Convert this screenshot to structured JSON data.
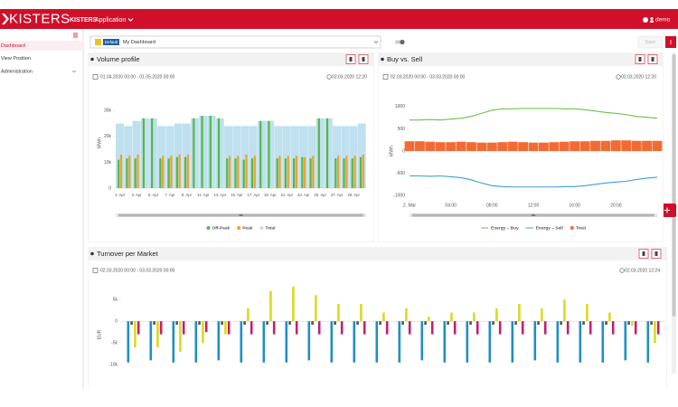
{
  "header": {
    "logo": "KISTERS",
    "app_brand": "KISTERS",
    "app_name": "Application",
    "user": "demo"
  },
  "sidebar": {
    "items": [
      "Dashboard",
      "View Position",
      "Administration"
    ]
  },
  "toolbar": {
    "badge": "Default",
    "dashboard": "My Dashboard",
    "save": "Save"
  },
  "chart_data": [
    {
      "type": "bar",
      "title": "Volume profile",
      "date_range": "01.04.2020 00:00 - 01.05.2020 00:00",
      "timestamp": "02.03.2020 12:20",
      "y_label": "MWh",
      "categories": [
        "1. Apr",
        null,
        "3. Apr",
        null,
        "5. Apr",
        null,
        "7. Apr",
        null,
        "9. Apr",
        null,
        "11. Apr",
        null,
        "13. Apr",
        null,
        "15. Apr",
        null,
        "17. Apr",
        null,
        "19. Apr",
        null,
        "21. Apr",
        null,
        "23. Apr",
        null,
        "25. Apr",
        null,
        "27. Apr",
        null,
        "29. Apr",
        null
      ],
      "ylim": [
        0,
        35000
      ],
      "yticks": [
        0,
        {
          "value": 10000,
          "label": "10k"
        },
        {
          "value": 20000,
          "label": "20k"
        },
        {
          "value": 30000,
          "label": "30k"
        }
      ],
      "series": [
        {
          "name": "Off-Peak",
          "color": "#55b848",
          "kind": "column",
          "values": [
            11000,
            11500,
            11500,
            27000,
            27000,
            11500,
            11500,
            12000,
            12000,
            27000,
            28000,
            28000,
            27000,
            11500,
            11500,
            11000,
            11500,
            26000,
            26000,
            11500,
            11500,
            11500,
            12000,
            11500,
            27000,
            27000,
            11500,
            11500,
            11500,
            12000
          ]
        },
        {
          "name": "Peak",
          "color": "#f0a030",
          "kind": "column",
          "values": [
            13000,
            12500,
            13000,
            0,
            0,
            12500,
            12500,
            13000,
            13000,
            0,
            0,
            0,
            0,
            12500,
            12500,
            13000,
            12500,
            0,
            0,
            12500,
            12500,
            12500,
            12000,
            12500,
            0,
            0,
            12500,
            12500,
            12500,
            13000
          ]
        },
        {
          "name": "Total",
          "color": "#bfe0ee",
          "kind": "backdrop",
          "values": [
            25000,
            24000,
            26000,
            27000,
            27000,
            24000,
            24000,
            25000,
            25000,
            27000,
            28000,
            28000,
            27000,
            24000,
            24000,
            24000,
            24000,
            26000,
            26000,
            24000,
            24000,
            24000,
            24000,
            24000,
            27000,
            27000,
            24000,
            24000,
            24000,
            25000
          ]
        }
      ]
    },
    {
      "type": "line",
      "title": "Buy vs. Sell",
      "date_range": "02.03.2020 00:00 - 03.03.2020 00:00",
      "timestamp": "02.03.2020 12:20",
      "y_label": "MWh",
      "x": [
        0,
        1,
        2,
        3,
        4,
        5,
        6,
        7,
        8,
        9,
        10,
        11,
        12,
        13,
        14,
        15,
        16,
        17,
        18,
        19,
        20,
        21,
        22,
        23,
        24
      ],
      "xlim": [
        0,
        24
      ],
      "xticks": [
        {
          "value": 0,
          "label": "2. Mar"
        },
        {
          "value": 4,
          "label": "04:00"
        },
        {
          "value": 8,
          "label": "08:00"
        },
        {
          "value": 12,
          "label": "12:00"
        },
        {
          "value": 16,
          "label": "16:00"
        },
        {
          "value": 20,
          "label": "20:00"
        }
      ],
      "ylim": [
        -1100,
        1100
      ],
      "yticks": [
        -1000,
        -500,
        0,
        500,
        1000
      ],
      "series": [
        {
          "name": "Energy – Buy",
          "color": "#6cc04a",
          "kind": "line",
          "values": [
            700,
            700,
            710,
            700,
            720,
            740,
            780,
            850,
            920,
            950,
            950,
            960,
            960,
            960,
            960,
            950,
            950,
            930,
            900,
            870,
            850,
            820,
            780,
            760,
            740
          ]
        },
        {
          "name": "Energy – Sell",
          "color": "#3a9fd0",
          "kind": "line",
          "values": [
            -560,
            -560,
            -570,
            -560,
            -580,
            -600,
            -650,
            -720,
            -780,
            -800,
            -810,
            -810,
            -810,
            -810,
            -810,
            -800,
            -800,
            -780,
            -750,
            -720,
            -700,
            -680,
            -640,
            -610,
            -590
          ]
        },
        {
          "name": "Total",
          "color": "#f26b35",
          "kind": "column",
          "values": [
            220,
            220,
            210,
            200,
            200,
            210,
            200,
            190,
            190,
            200,
            210,
            200,
            190,
            190,
            200,
            210,
            220,
            220,
            230,
            230,
            240,
            240,
            230,
            230,
            230
          ]
        }
      ]
    },
    {
      "type": "bar",
      "title": "Turnover per Market",
      "date_range": "02.03.2020 00:00 - 03.03.2020 00:00",
      "timestamp": "02.03.2020 12:24",
      "y_label": "EUR",
      "categories": [
        null,
        null,
        null,
        null,
        null,
        null,
        null,
        null,
        null,
        null,
        null,
        null,
        null,
        null,
        null,
        null,
        null,
        null,
        null,
        null,
        null,
        null,
        null,
        null
      ],
      "ylim": [
        -11000,
        9000
      ],
      "yticks": [
        {
          "value": -10000,
          "label": "-10k"
        },
        {
          "value": -5000,
          "label": "-5k"
        },
        0,
        {
          "value": 5000,
          "label": "5k"
        }
      ],
      "series": [
        {
          "color": "#1e8fc6",
          "kind": "column",
          "values": [
            -9500,
            -9000,
            -9500,
            -9500,
            -9000,
            -9500,
            -9500,
            -9500,
            -9000,
            -9500,
            -9500,
            -9500,
            -9500,
            -9000,
            -9500,
            -9500,
            -9500,
            -9500,
            -9000,
            -9500,
            -9500,
            -9500,
            -9000,
            -9500
          ]
        },
        {
          "color": "#555555",
          "kind": "column",
          "values": [
            -800,
            -800,
            -800,
            -800,
            -800,
            -800,
            -800,
            -800,
            -800,
            -800,
            -800,
            -800,
            -800,
            -800,
            -800,
            -800,
            -800,
            -800,
            -800,
            -800,
            -800,
            -800,
            -800,
            -800
          ]
        },
        {
          "color": "#dcd820",
          "kind": "column",
          "values": [
            -6000,
            -6000,
            -7000,
            -5000,
            -3000,
            3000,
            7000,
            8000,
            6000,
            4000,
            4000,
            2000,
            3000,
            1000,
            2000,
            2000,
            3000,
            4000,
            3000,
            5000,
            4000,
            2000,
            -1000,
            -5000
          ]
        },
        {
          "color": "#c2206e",
          "kind": "column",
          "values": [
            -3000,
            -3000,
            -3000,
            -2500,
            -3000,
            -3000,
            -3000,
            -3000,
            -3000,
            -3000,
            -3000,
            -3000,
            -3000,
            -3000,
            -3000,
            -3000,
            -3000,
            -3000,
            -3000,
            -3000,
            -3000,
            -3000,
            -3000,
            -3000
          ]
        }
      ]
    }
  ]
}
